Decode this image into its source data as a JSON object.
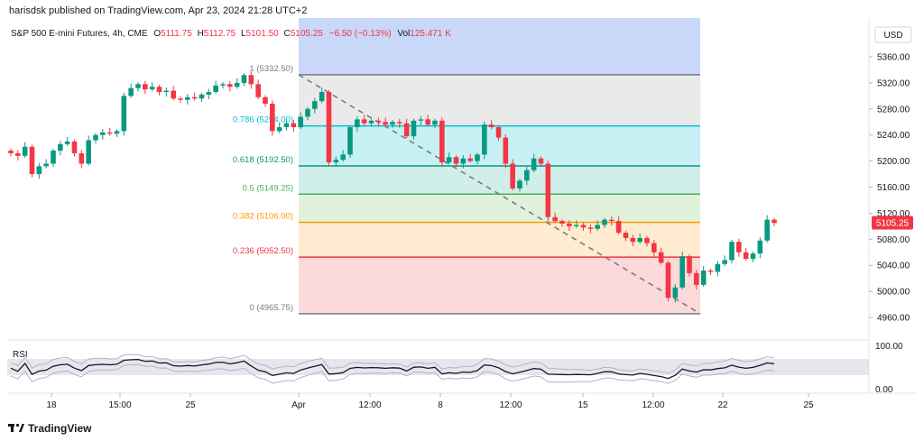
{
  "header": {
    "published": "harisdsk published on TradingView.com, Apr 23, 2024 21:28 UTC+2",
    "symbol": "S&P 500 E-mini Futures, 4h, CME",
    "open_label": "O",
    "open": "5111.75",
    "high_label": "H",
    "high": "5112.75",
    "low_label": "L",
    "low": "5101.50",
    "close_label": "C",
    "close": "5105.25",
    "change": "−6.50 (−0.13%)",
    "vol_label": "Vol",
    "vol": "125.471 K"
  },
  "price_axis": {
    "currency": "USD",
    "ticks": [
      "5360.00",
      "5320.00",
      "5280.00",
      "5240.00",
      "5200.00",
      "5160.00",
      "5120.00",
      "5080.00",
      "5040.00",
      "5000.00",
      "4960.00"
    ],
    "last_price": "5105.25"
  },
  "rsi": {
    "label": "RSI",
    "ticks": [
      "100.00",
      "0.00"
    ]
  },
  "time_axis": {
    "ticks": [
      "18",
      "15:00",
      "25",
      "Apr",
      "12:00",
      "8",
      "12:00",
      "15",
      "12:00",
      "22",
      "25"
    ]
  },
  "fib_levels": [
    {
      "ratio": "1",
      "label": "1 (5332.50)",
      "price": 5332.5,
      "color": "#787b86"
    },
    {
      "ratio": "0.786",
      "label": "0.786 (5254.00)",
      "price": 5254.0,
      "color": "#00bcd4"
    },
    {
      "ratio": "0.618",
      "label": "0.618 (5192.50)",
      "price": 5192.5,
      "color": "#089981"
    },
    {
      "ratio": "0.5",
      "label": "0.5 (5149.25)",
      "price": 5149.25,
      "color": "#4caf50"
    },
    {
      "ratio": "0.382",
      "label": "0.382 (5106.00)",
      "price": 5106.0,
      "color": "#ff9800"
    },
    {
      "ratio": "0.236",
      "label": "0.236 (5052.50)",
      "price": 5052.5,
      "color": "#f23645"
    },
    {
      "ratio": "0",
      "label": "0 (4965.75)",
      "price": 4965.75,
      "color": "#787b86"
    }
  ],
  "colors": {
    "up": "#089981",
    "down": "#f23645",
    "fib_top_zone": "#b7c9f7",
    "rsi_line": "#131722",
    "rsi_band": "#c8c9cd"
  },
  "chart_data": {
    "type": "candlestick",
    "title": "S&P 500 E-mini Futures, 4h, CME",
    "ylim": [
      4950,
      5385
    ],
    "y_unit": "USD",
    "x_ticks": [
      "18",
      "15:00",
      "25",
      "Apr",
      "12:00",
      "8",
      "12:00",
      "15",
      "12:00",
      "22",
      "25"
    ],
    "close_path": [
      5212,
      5208,
      5222,
      5180,
      5192,
      5196,
      5216,
      5226,
      5230,
      5212,
      5196,
      5232,
      5240,
      5244,
      5242,
      5246,
      5300,
      5312,
      5318,
      5310,
      5314,
      5306,
      5308,
      5296,
      5294,
      5298,
      5296,
      5302,
      5306,
      5316,
      5318,
      5314,
      5320,
      5332,
      5318,
      5298,
      5288,
      5246,
      5252,
      5258,
      5252,
      5268,
      5280,
      5292,
      5306,
      5198,
      5202,
      5210,
      5252,
      5264,
      5258,
      5262,
      5260,
      5256,
      5260,
      5258,
      5238,
      5262,
      5264,
      5256,
      5262,
      5198,
      5206,
      5196,
      5204,
      5200,
      5210,
      5256,
      5252,
      5236,
      5196,
      5158,
      5170,
      5186,
      5204,
      5196,
      5114,
      5108,
      5104,
      5100,
      5102,
      5098,
      5096,
      5102,
      5110,
      5108,
      5090,
      5082,
      5076,
      5082,
      5074,
      5060,
      5044,
      4990,
      5006,
      5054,
      5028,
      5010,
      5032,
      5030,
      5042,
      5048,
      5076,
      5060,
      5050,
      5058,
      5078,
      5110,
      5105
    ],
    "last_close": 5105.25,
    "fib_retracement": {
      "high": 5332.5,
      "low": 4965.75,
      "levels": [
        1,
        0.786,
        0.618,
        0.5,
        0.382,
        0.236,
        0
      ]
    },
    "rsi_range": [
      0,
      100
    ]
  }
}
